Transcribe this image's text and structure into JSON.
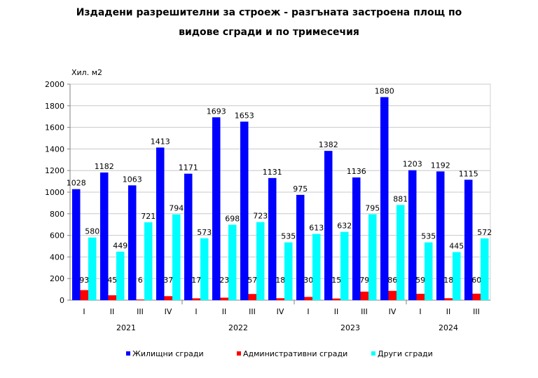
{
  "chart_data": {
    "type": "bar",
    "title_line1": "Издадени разрешителни за строеж - разгъната застроена площ по",
    "title_line2": "видове сгради и по тримесечия",
    "ylabel": "Хил. м2",
    "ylim": [
      0,
      2000
    ],
    "yticks": [
      0,
      200,
      400,
      600,
      800,
      1000,
      1200,
      1400,
      1600,
      1800,
      2000
    ],
    "grid": true,
    "legend_placement": "bottom",
    "categories": [
      "I",
      "II",
      "III",
      "IV",
      "I",
      "II",
      "III",
      "IV",
      "I",
      "II",
      "III",
      "IV",
      "I",
      "II",
      "III"
    ],
    "years": [
      {
        "label": "2021",
        "span": 4
      },
      {
        "label": "2022",
        "span": 4
      },
      {
        "label": "2023",
        "span": 4
      },
      {
        "label": "2024",
        "span": 3
      }
    ],
    "series": [
      {
        "name": "Жилищни сгради",
        "color": "#0000ff",
        "values": [
          1028,
          1182,
          1063,
          1413,
          1171,
          1693,
          1653,
          1131,
          975,
          1382,
          1136,
          1880,
          1203,
          1192,
          1115
        ]
      },
      {
        "name": "Административни сгради",
        "color": "#ff0000",
        "values": [
          93,
          45,
          6,
          37,
          17,
          23,
          57,
          18,
          30,
          15,
          79,
          86,
          59,
          18,
          60
        ]
      },
      {
        "name": "Други сгради",
        "color": "#00ffff",
        "values": [
          580,
          449,
          721,
          794,
          573,
          698,
          723,
          535,
          613,
          632,
          795,
          881,
          535,
          445,
          572
        ]
      }
    ]
  }
}
